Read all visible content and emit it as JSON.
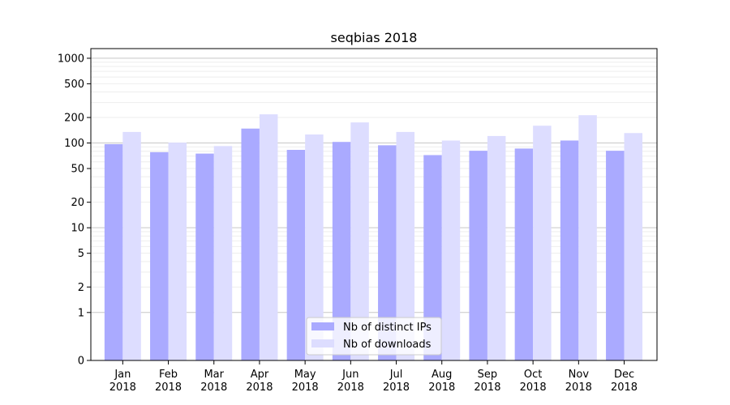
{
  "chart_data": {
    "type": "bar",
    "title": "seqbias 2018",
    "xlabel": "",
    "ylabel": "",
    "yscale": "symlog",
    "ylim": [
      0,
      1300
    ],
    "yticks": [
      0,
      1,
      2,
      5,
      10,
      20,
      50,
      100,
      200,
      500,
      1000
    ],
    "grid": true,
    "legend_position": "lower-center",
    "categories": [
      [
        "Jan",
        "2018"
      ],
      [
        "Feb",
        "2018"
      ],
      [
        "Mar",
        "2018"
      ],
      [
        "Apr",
        "2018"
      ],
      [
        "May",
        "2018"
      ],
      [
        "Jun",
        "2018"
      ],
      [
        "Jul",
        "2018"
      ],
      [
        "Aug",
        "2018"
      ],
      [
        "Sep",
        "2018"
      ],
      [
        "Oct",
        "2018"
      ],
      [
        "Nov",
        "2018"
      ],
      [
        "Dec",
        "2018"
      ]
    ],
    "series": [
      {
        "name": "Nb of distinct IPs",
        "color": "#aaaaff",
        "values": [
          97,
          78,
          75,
          148,
          83,
          103,
          94,
          72,
          81,
          86,
          107,
          81
        ]
      },
      {
        "name": "Nb of downloads",
        "color": "#ddddff",
        "values": [
          135,
          101,
          92,
          218,
          126,
          175,
          135,
          107,
          121,
          160,
          213,
          131
        ]
      }
    ]
  }
}
